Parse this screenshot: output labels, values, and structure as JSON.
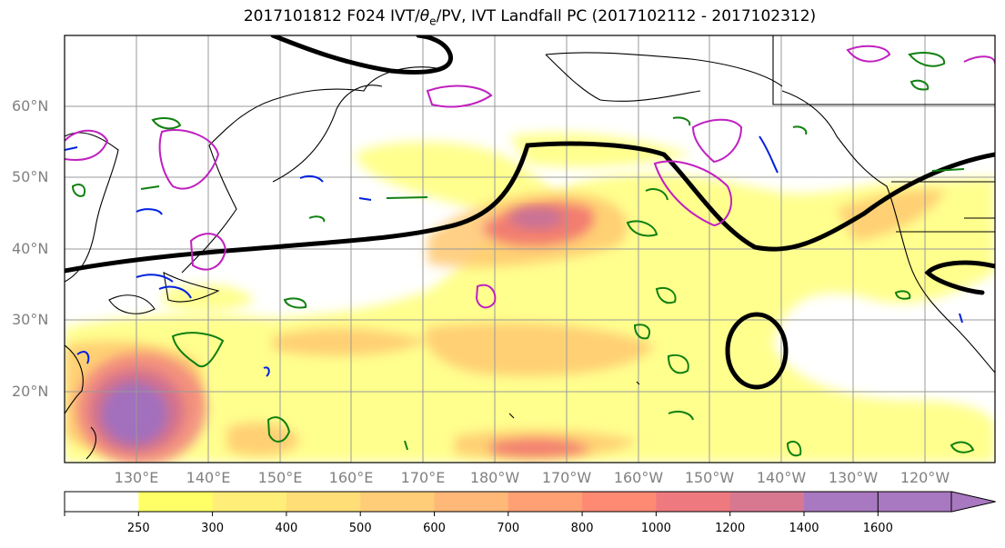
{
  "title_prefix": "2017101812 F024 IVT/",
  "title_theta": "θ",
  "title_sub": "e",
  "title_suffix": "/PV, IVT Landfall PC (2017102112 - 2017102312)",
  "lat_labels": [
    "60°N",
    "50°N",
    "40°N",
    "30°N",
    "20°N"
  ],
  "lon_labels": [
    "130°E",
    "140°E",
    "150°E",
    "160°E",
    "170°E",
    "180°W",
    "170°W",
    "160°W",
    "150°W",
    "140°W",
    "130°W",
    "120°W"
  ],
  "colorbar": {
    "ticks": [
      "250",
      "300",
      "400",
      "500",
      "600",
      "700",
      "800",
      "1000",
      "1200",
      "1400",
      "1600"
    ],
    "colors": [
      "#ffffff",
      "#ffff66",
      "#ffee77",
      "#ffdd77",
      "#ffcc77",
      "#ffb877",
      "#ffa074",
      "#ff8a73",
      "#ee7a80",
      "#d87890",
      "#a878c0",
      "#a878c0"
    ]
  },
  "colors": {
    "contour_black": "#000000",
    "contour_magenta": "#c020c0",
    "contour_blue": "#0020e0",
    "contour_green": "#108010",
    "grid": "#999999"
  }
}
